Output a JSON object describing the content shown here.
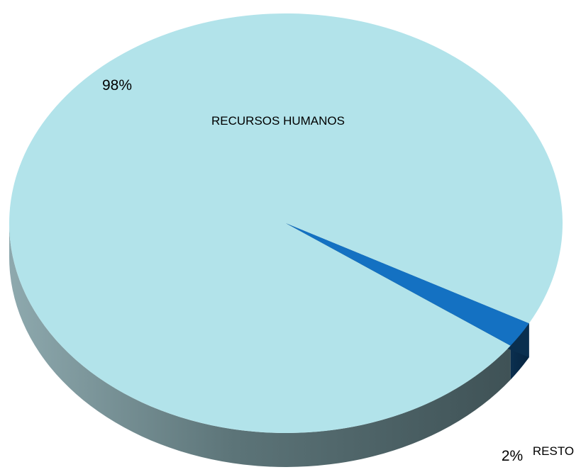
{
  "chart_data": {
    "type": "pie",
    "title": "",
    "labels": [
      "RECURSOS HUMANOS",
      "RESTO"
    ],
    "values": [
      98,
      2
    ],
    "value_labels": [
      "98%",
      "2%"
    ],
    "colors": {
      "RECURSOS HUMANOS": "#b2e3ea",
      "RESTO": "#1471c2"
    },
    "three_d": true,
    "legend": "none"
  }
}
